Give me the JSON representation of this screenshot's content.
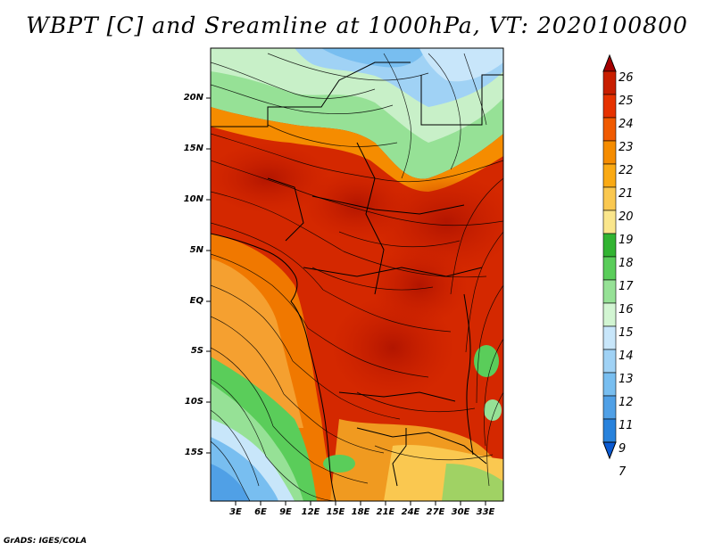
{
  "title": "WBPT [C] and Sreamline at 1000hPa, VT: 2020100800",
  "map": {
    "lat_labels": [
      "20N",
      "15N",
      "10N",
      "5N",
      "EQ",
      "5S",
      "10S",
      "15S"
    ],
    "lon_labels": [
      "3E",
      "6E",
      "9E",
      "12E",
      "15E",
      "18E",
      "21E",
      "24E",
      "27E",
      "30E",
      "33E"
    ],
    "extent": {
      "lon_min": 0,
      "lon_max": 35,
      "lat_min": -20,
      "lat_max": 25
    }
  },
  "colorbar": {
    "labels": [
      "26",
      "25",
      "24",
      "23",
      "22",
      "21",
      "20",
      "19",
      "18",
      "17",
      "16",
      "15",
      "14",
      "13",
      "12",
      "11",
      "9",
      "7"
    ],
    "colors": [
      "#a50000",
      "#c81e00",
      "#e63200",
      "#f05a00",
      "#f58c00",
      "#faaa14",
      "#fac850",
      "#fae68c",
      "#32b432",
      "#5acd5a",
      "#96e196",
      "#d2f5d2",
      "#c8e6fa",
      "#a0d2f5",
      "#78bef0",
      "#50a0e6",
      "#2882dc",
      "#0a5ad2"
    ]
  },
  "credit": "GrADS: IGES/COLA"
}
